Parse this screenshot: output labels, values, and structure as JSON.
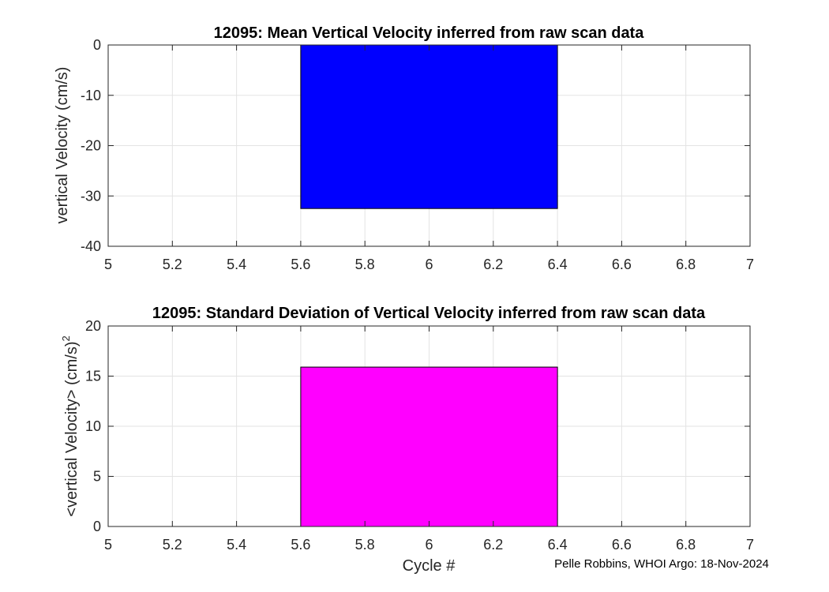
{
  "chart_data": [
    {
      "type": "bar",
      "title": "12095: Mean Vertical Velocity inferred from raw scan data",
      "xlabel": "",
      "ylabel": "vertical Velocity (cm/s)",
      "x": [
        6
      ],
      "bar_width": 0.8,
      "values": [
        -32.5
      ],
      "xlim": [
        5,
        7
      ],
      "ylim": [
        -40,
        0
      ],
      "xticks": [
        5,
        5.2,
        5.4,
        5.6,
        5.8,
        6,
        6.2,
        6.4,
        6.6,
        6.8,
        7
      ],
      "xtick_labels": [
        "5",
        "5.2",
        "5.4",
        "5.6",
        "5.8",
        "6",
        "6.2",
        "6.4",
        "6.6",
        "6.8",
        "7"
      ],
      "yticks": [
        -40,
        -30,
        -20,
        -10,
        0
      ],
      "ytick_labels": [
        "-40",
        "-30",
        "-20",
        "-10",
        "0"
      ],
      "grid": true,
      "color": "#0000ff"
    },
    {
      "type": "bar",
      "title": "12095: Standard Deviation of Vertical Velocity inferred from raw scan data",
      "xlabel": "Cycle #",
      "ylabel": "<vertical Velocity> (cm/s)",
      "ylabel_superscript": "2",
      "x": [
        6
      ],
      "bar_width": 0.8,
      "values": [
        15.9
      ],
      "xlim": [
        5,
        7
      ],
      "ylim": [
        0,
        20
      ],
      "xticks": [
        5,
        5.2,
        5.4,
        5.6,
        5.8,
        6,
        6.2,
        6.4,
        6.6,
        6.8,
        7
      ],
      "xtick_labels": [
        "5",
        "5.2",
        "5.4",
        "5.6",
        "5.8",
        "6",
        "6.2",
        "6.4",
        "6.6",
        "6.8",
        "7"
      ],
      "yticks": [
        0,
        5,
        10,
        15,
        20
      ],
      "ytick_labels": [
        "0",
        "5",
        "10",
        "15",
        "20"
      ],
      "grid": true,
      "color": "#ff00ff"
    }
  ],
  "footer": {
    "credit": "Pelle Robbins, WHOI Argo: 18-Nov-2024"
  }
}
